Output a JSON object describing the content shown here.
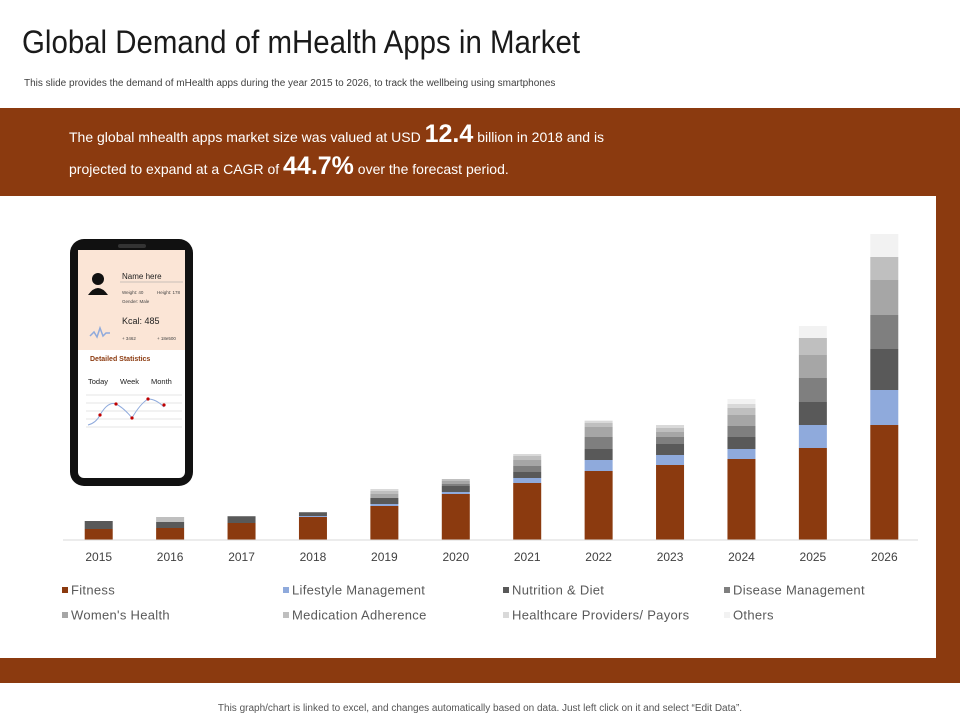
{
  "header": {
    "title": "Global Demand of mHealth Apps in Market",
    "subtitle": "This slide provides the demand of mHealth apps during the year 2015 to 2026, to track the wellbeing using smartphones"
  },
  "highlight": {
    "line1_start": "The global mhealth apps market size was valued at USD",
    "value1": "12.4",
    "line1_end": "billion in 2018 and is",
    "line2_start": "projected to expand at a CAGR of",
    "value2": "44.7%",
    "line2_end": "over the forecast period."
  },
  "phone": {
    "name": "Name here",
    "weight": "Weight: 40",
    "height": "Height: 178",
    "gender": "Gender: Male",
    "kcal": "Kcal: 485",
    "stat1": "+ 3462",
    "stat2": "+ 18e500",
    "section": "Detailed Statistics",
    "tabs": [
      "Today",
      "Week",
      "Month"
    ]
  },
  "chart_data": {
    "type": "stacked_bar",
    "categories": [
      "2015",
      "2016",
      "2017",
      "2018",
      "2019",
      "2020",
      "2021",
      "2022",
      "2023",
      "2024",
      "2025",
      "2026"
    ],
    "ylim": [
      0,
      310
    ],
    "series": [
      {
        "name": "Fitness",
        "color": "#8b3a0f",
        "values": [
          11,
          12,
          17,
          23,
          34,
          46,
          57,
          69,
          75,
          81,
          92,
          115
        ]
      },
      {
        "name": "Lifestyle Management",
        "color": "#8faadc",
        "values": [
          0,
          0,
          0,
          1,
          2,
          2,
          5,
          11,
          10,
          10,
          23,
          35
        ]
      },
      {
        "name": "Nutrition & Diet",
        "color": "#595959",
        "values": [
          8,
          6,
          6,
          3,
          6,
          6,
          6,
          11,
          11,
          12,
          23,
          41
        ]
      },
      {
        "name": "Disease Management",
        "color": "#7f7f7f",
        "values": [
          0,
          0,
          1,
          1,
          0,
          2,
          6,
          12,
          7,
          11,
          24,
          34
        ]
      },
      {
        "name": "Women's Health",
        "color": "#a6a6a6",
        "values": [
          0,
          0,
          0,
          0,
          4,
          3,
          6,
          10,
          5,
          11,
          23,
          35
        ]
      },
      {
        "name": "Medication Adherence",
        "color": "#bfbfbf",
        "values": [
          0,
          5,
          0,
          0,
          3,
          2,
          4,
          4,
          4,
          7,
          17,
          23
        ]
      },
      {
        "name": "Healthcare Providers/ Payors",
        "color": "#d9d9d9",
        "values": [
          0,
          0,
          0,
          0,
          2,
          0,
          2,
          2,
          3,
          4,
          0,
          0
        ]
      },
      {
        "name": "Others",
        "color": "#f2f2f2",
        "values": [
          0,
          0,
          0,
          0,
          0,
          0,
          0,
          1,
          0,
          5,
          12,
          23
        ]
      }
    ]
  },
  "footer": "This graph/chart is linked to excel, and changes automatically  based on data. Just left click on it and select “Edit Data”."
}
